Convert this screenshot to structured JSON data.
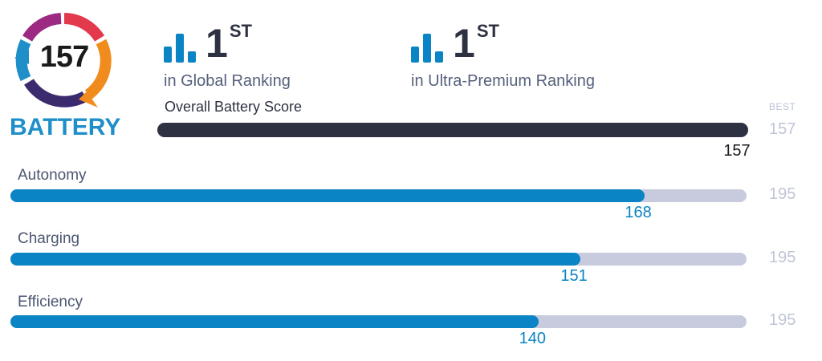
{
  "badge": {
    "score": "157",
    "label": "BATTERY",
    "colors": [
      "#1e8fc8",
      "#3c2a6e",
      "#9c2a82",
      "#e2394c",
      "#f08c1e"
    ]
  },
  "rankings": [
    {
      "number": "1",
      "suffix": "ST",
      "label": "in Global Ranking",
      "icon": "bar-chart-icon"
    },
    {
      "number": "1",
      "suffix": "ST",
      "label": "in Ultra-Premium Ranking",
      "icon": "bar-chart-icon"
    }
  ],
  "overall": {
    "title": "Overall Battery Score",
    "best_label": "BEST",
    "value": 157,
    "best": 157,
    "color": "#2d3142"
  },
  "subscores": [
    {
      "label": "Autonomy",
      "value": 168,
      "best": 195,
      "color": "#0a84c4"
    },
    {
      "label": "Charging",
      "value": 151,
      "best": 195,
      "color": "#0a84c4"
    },
    {
      "label": "Efficiency",
      "value": 140,
      "best": 195,
      "color": "#0a84c4"
    }
  ]
}
